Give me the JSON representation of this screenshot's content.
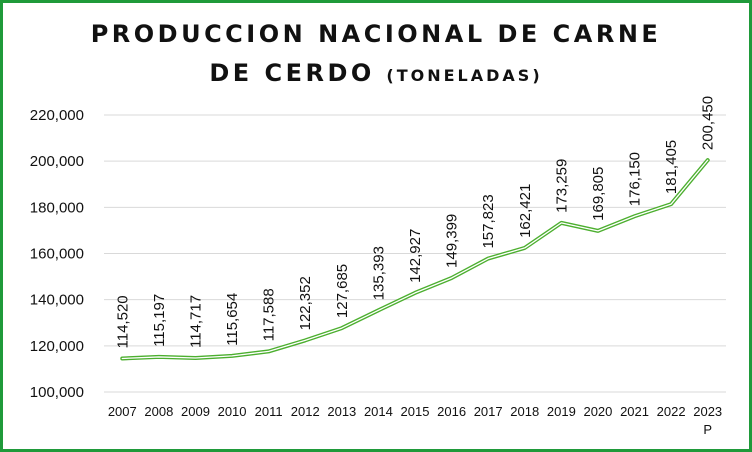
{
  "chart_data": {
    "type": "line",
    "title_line1": "PRODUCCION NACIONAL DE CARNE",
    "title_line2_main": "DE CERDO",
    "title_line2_unit": "(TONELADAS)",
    "xlabel": "",
    "ylabel": "",
    "categories": [
      "2007",
      "2008",
      "2009",
      "2010",
      "2011",
      "2012",
      "2013",
      "2014",
      "2015",
      "2016",
      "2017",
      "2018",
      "2019",
      "2020",
      "2021",
      "2022",
      "2023"
    ],
    "category_suffix": {
      "2023": "P"
    },
    "series": [
      {
        "values": [
          114520,
          115197,
          114717,
          115654,
          117588,
          122352,
          127685,
          135393,
          142927,
          149399,
          157823,
          162421,
          173259,
          169805,
          176150,
          181405,
          200450
        ],
        "value_labels": [
          "114,520",
          "115,197",
          "114,717",
          "115,654",
          "117,588",
          "122,352",
          "127,685",
          "135,393",
          "142,927",
          "149,399",
          "157,823",
          "162,421",
          "173,259",
          "169,805",
          "176,150",
          "181,405",
          "200,450"
        ],
        "color": "#4caf2f"
      }
    ],
    "ylim": [
      100000,
      220000
    ],
    "yticks": [
      100000,
      120000,
      140000,
      160000,
      180000,
      200000,
      220000
    ],
    "ytick_labels": [
      "100,000",
      "120,000",
      "140,000",
      "160,000",
      "180,000",
      "200,000",
      "220,000"
    ],
    "grid": true,
    "legend": "none"
  },
  "colors": {
    "border": "#1f9a3a",
    "line": "#4caf2f",
    "grid": "#d9d9d9",
    "text": "#111111"
  }
}
